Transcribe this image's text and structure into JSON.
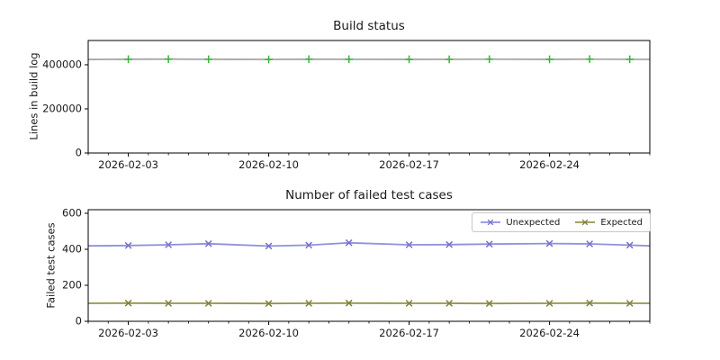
{
  "figure": {
    "background": "#ffffff",
    "text_color": "#1a1a1a",
    "spine_color": "#000000"
  },
  "chart_data": [
    {
      "type": "line",
      "title": "Build status",
      "xlabel": "",
      "ylabel": "Lines in build log",
      "grid": false,
      "x_range": [
        "2026-02-01",
        "2026-03-01"
      ],
      "x_major_ticks": [
        "2026-02-03",
        "2026-02-10",
        "2026-02-17",
        "2026-02-24"
      ],
      "x_minor_tick_interval_days": 1,
      "ylim": [
        0,
        510000
      ],
      "yticks": [
        0,
        200000,
        400000
      ],
      "legend": null,
      "series": [
        {
          "name": "Lines in build log",
          "line_color": "#a6a6a6",
          "marker": "plus",
          "marker_color": "#3bb23b",
          "x": [
            "2026-02-01",
            "2026-02-03",
            "2026-02-05",
            "2026-02-07",
            "2026-02-10",
            "2026-02-12",
            "2026-02-14",
            "2026-02-17",
            "2026-02-19",
            "2026-02-21",
            "2026-02-24",
            "2026-02-26",
            "2026-02-28",
            "2026-03-01"
          ],
          "values": [
            424000,
            425000,
            425500,
            424800,
            424200,
            425100,
            424900,
            424500,
            424700,
            425200,
            424600,
            425400,
            424800,
            424300
          ],
          "marker_at": [
            false,
            true,
            true,
            true,
            true,
            true,
            true,
            true,
            true,
            true,
            true,
            true,
            true,
            false
          ]
        }
      ]
    },
    {
      "type": "line",
      "title": "Number of failed test cases",
      "xlabel": "",
      "ylabel": "Failed test cases",
      "grid": false,
      "x_range": [
        "2026-02-01",
        "2026-03-01"
      ],
      "x_major_ticks": [
        "2026-02-03",
        "2026-02-10",
        "2026-02-17",
        "2026-02-24"
      ],
      "x_minor_tick_interval_days": 1,
      "ylim": [
        0,
        620
      ],
      "yticks": [
        0,
        200,
        400,
        600
      ],
      "legend": {
        "position": "upper right",
        "labels": [
          "Unexpected",
          "Expected"
        ]
      },
      "series": [
        {
          "name": "Unexpected",
          "line_color": "#9191dc",
          "marker": "x",
          "marker_color": "#7371cb",
          "x": [
            "2026-02-01",
            "2026-02-03",
            "2026-02-05",
            "2026-02-07",
            "2026-02-10",
            "2026-02-12",
            "2026-02-14",
            "2026-02-17",
            "2026-02-19",
            "2026-02-21",
            "2026-02-24",
            "2026-02-26",
            "2026-02-28",
            "2026-03-01"
          ],
          "values": [
            419,
            421,
            425,
            431,
            418,
            423,
            436,
            425,
            426,
            429,
            432,
            430,
            423,
            419
          ],
          "marker_at": [
            false,
            true,
            true,
            true,
            true,
            true,
            true,
            true,
            true,
            true,
            true,
            true,
            true,
            false
          ]
        },
        {
          "name": "Expected",
          "line_color": "#94944e",
          "marker": "x",
          "marker_color": "#7f7f3a",
          "x": [
            "2026-02-01",
            "2026-02-03",
            "2026-02-05",
            "2026-02-07",
            "2026-02-10",
            "2026-02-12",
            "2026-02-14",
            "2026-02-17",
            "2026-02-19",
            "2026-02-21",
            "2026-02-24",
            "2026-02-26",
            "2026-02-28",
            "2026-03-01"
          ],
          "values": [
            100,
            101,
            100,
            100,
            99,
            100,
            101,
            100,
            100,
            99,
            100,
            101,
            100,
            100
          ],
          "marker_at": [
            false,
            true,
            true,
            true,
            true,
            true,
            true,
            true,
            true,
            true,
            true,
            true,
            true,
            false
          ]
        }
      ]
    }
  ]
}
